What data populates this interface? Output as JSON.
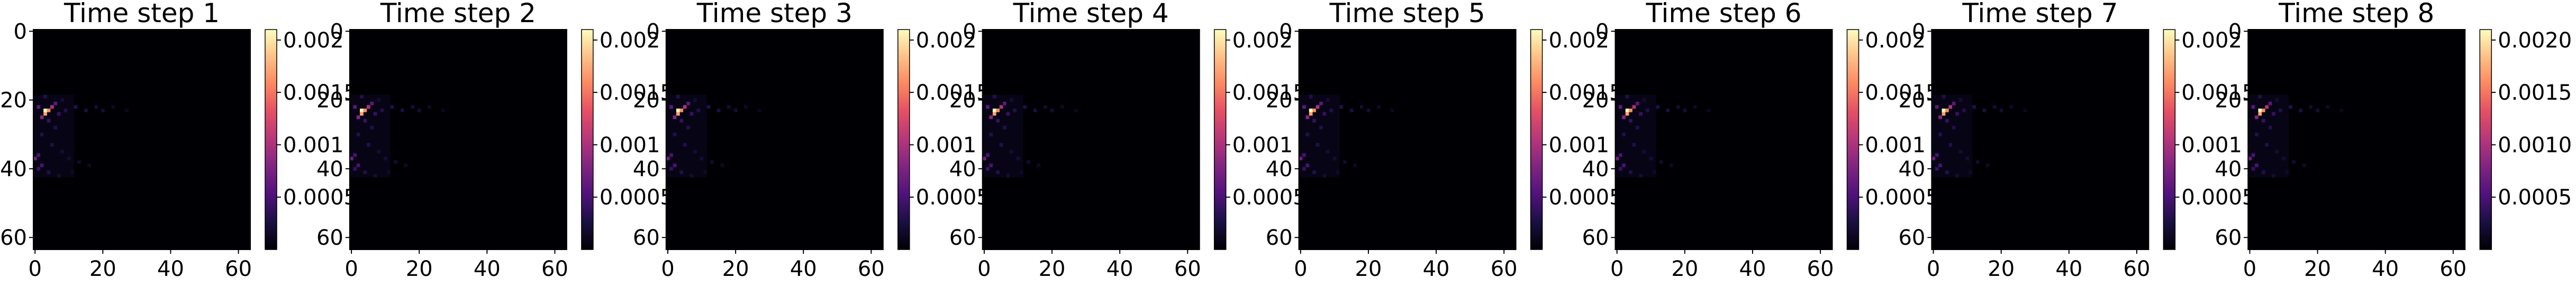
{
  "chart_data": {
    "type": "heatmap",
    "colormap": "magma",
    "grid_size": 64,
    "panels": [
      {
        "title": "Time step 1",
        "x_ticks": [
          "0",
          "20",
          "40",
          "60"
        ],
        "y_ticks": [
          "0",
          "20",
          "40",
          "60"
        ],
        "colorbar_ticks": [
          "0.002",
          "0.0015",
          "0.001",
          "0.0005"
        ],
        "colorbar_labels": [
          "0.002",
          "0.0015",
          "0.001",
          "0.0005"
        ]
      },
      {
        "title": "Time step 2",
        "x_ticks": [
          "0",
          "20",
          "40",
          "60"
        ],
        "y_ticks": [
          "0",
          "20",
          "40",
          "60"
        ],
        "colorbar_ticks": [
          "0.002",
          "0.0015",
          "0.001",
          "0.0005"
        ],
        "colorbar_labels": [
          "0.002",
          "0.0015",
          "0.001",
          "0.0005"
        ]
      },
      {
        "title": "Time step 3",
        "x_ticks": [
          "0",
          "20",
          "40",
          "60"
        ],
        "y_ticks": [
          "0",
          "20",
          "40",
          "60"
        ],
        "colorbar_ticks": [
          "0.002",
          "0.0015",
          "0.001",
          "0.0005"
        ],
        "colorbar_labels": [
          "0.002",
          "0.0015",
          "0.001",
          "0.0005"
        ]
      },
      {
        "title": "Time step 4",
        "x_ticks": [
          "0",
          "20",
          "40",
          "60"
        ],
        "y_ticks": [
          "0",
          "20",
          "40",
          "60"
        ],
        "colorbar_ticks": [
          "0.002",
          "0.0015",
          "0.001",
          "0.0005"
        ],
        "colorbar_labels": [
          "0.002",
          "0.0015",
          "0.001",
          "0.0005"
        ]
      },
      {
        "title": "Time step 5",
        "x_ticks": [
          "0",
          "20",
          "40",
          "60"
        ],
        "y_ticks": [
          "0",
          "20",
          "40",
          "60"
        ],
        "colorbar_ticks": [
          "0.002",
          "0.0015",
          "0.001",
          "0.0005"
        ],
        "colorbar_labels": [
          "0.002",
          "0.0015",
          "0.001",
          "0.0005"
        ]
      },
      {
        "title": "Time step 6",
        "x_ticks": [
          "0",
          "20",
          "40",
          "60"
        ],
        "y_ticks": [
          "0",
          "20",
          "40",
          "60"
        ],
        "colorbar_ticks": [
          "0.002",
          "0.0015",
          "0.001",
          "0.0005"
        ],
        "colorbar_labels": [
          "0.002",
          "0.0015",
          "0.001",
          "0.0005"
        ]
      },
      {
        "title": "Time step 7",
        "x_ticks": [
          "0",
          "20",
          "40",
          "60"
        ],
        "y_ticks": [
          "0",
          "20",
          "40",
          "60"
        ],
        "colorbar_ticks": [
          "0.002",
          "0.0015",
          "0.001",
          "0.0005"
        ],
        "colorbar_labels": [
          "0.002",
          "0.0015",
          "0.001",
          "0.0005"
        ]
      },
      {
        "title": "Time step 8",
        "x_ticks": [
          "0",
          "20",
          "40",
          "60"
        ],
        "y_ticks": [
          "0",
          "20",
          "40",
          "60"
        ],
        "colorbar_ticks": [
          "0.002",
          "0.0015",
          "0.001",
          "0.0005"
        ],
        "colorbar_labels": [
          "0.0020",
          "0.0015",
          "0.0010",
          "0.0005"
        ]
      }
    ],
    "colorbar_range": [
      0,
      0.0021
    ],
    "hotspot_cells": [
      {
        "x": 3,
        "y": 23,
        "value": 0.0021
      },
      {
        "x": 4,
        "y": 23,
        "value": 0.0016
      },
      {
        "x": 3,
        "y": 24,
        "value": 0.0017
      },
      {
        "x": 5,
        "y": 22,
        "value": 0.001
      },
      {
        "x": 2,
        "y": 25,
        "value": 0.0008
      },
      {
        "x": 1,
        "y": 22,
        "value": 0.0006
      },
      {
        "x": 6,
        "y": 21,
        "value": 0.0006
      },
      {
        "x": 0,
        "y": 37,
        "value": 0.0007
      },
      {
        "x": 1,
        "y": 36,
        "value": 0.0005
      },
      {
        "x": 2,
        "y": 39,
        "value": 0.0005
      },
      {
        "x": 7,
        "y": 24,
        "value": 0.0004
      },
      {
        "x": 4,
        "y": 26,
        "value": 0.0004
      },
      {
        "x": 2,
        "y": 30,
        "value": 0.0003
      },
      {
        "x": 6,
        "y": 28,
        "value": 0.0003
      },
      {
        "x": 9,
        "y": 23,
        "value": 0.0003
      },
      {
        "x": 12,
        "y": 22,
        "value": 0.0003
      },
      {
        "x": 15,
        "y": 23,
        "value": 0.00025
      },
      {
        "x": 18,
        "y": 22,
        "value": 0.0002
      },
      {
        "x": 20,
        "y": 23,
        "value": 0.0002
      },
      {
        "x": 5,
        "y": 33,
        "value": 0.0003
      },
      {
        "x": 8,
        "y": 35,
        "value": 0.0002
      },
      {
        "x": 10,
        "y": 37,
        "value": 0.0002
      },
      {
        "x": 13,
        "y": 38,
        "value": 0.00018
      },
      {
        "x": 16,
        "y": 39,
        "value": 0.00015
      },
      {
        "x": 4,
        "y": 41,
        "value": 0.0003
      },
      {
        "x": 7,
        "y": 42,
        "value": 0.0002
      },
      {
        "x": 11,
        "y": 41,
        "value": 0.00015
      },
      {
        "x": 1,
        "y": 40,
        "value": 0.0004
      },
      {
        "x": 3,
        "y": 19,
        "value": 0.0003
      },
      {
        "x": 8,
        "y": 20,
        "value": 0.0002
      },
      {
        "x": 23,
        "y": 22,
        "value": 0.00015
      },
      {
        "x": 27,
        "y": 23,
        "value": 0.00012
      }
    ],
    "diffuse_region": {
      "x": [
        0,
        12
      ],
      "y": [
        19,
        43
      ],
      "value": 8e-05
    }
  }
}
